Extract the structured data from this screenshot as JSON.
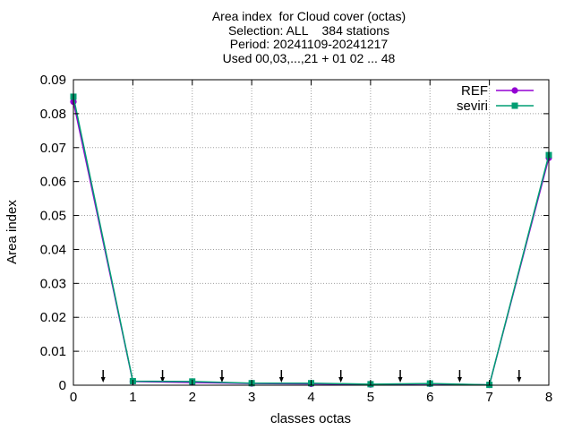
{
  "chart_data": {
    "type": "line",
    "title_lines": [
      "Area index  for Cloud cover (octas)",
      "Selection: ALL    384 stations",
      "Period: 20241109-20241217",
      "Used 00,03,...,21 + 01 02 ... 48"
    ],
    "xlabel": "classes octas",
    "ylabel": "Area index",
    "xlim": [
      0,
      8
    ],
    "ylim": [
      0,
      0.09
    ],
    "x_ticks": [
      "0",
      "1",
      "2",
      "3",
      "4",
      "5",
      "6",
      "7",
      "8"
    ],
    "y_ticks": [
      "0",
      "0.01",
      "0.02",
      "0.03",
      "0.04",
      "0.05",
      "0.06",
      "0.07",
      "0.08",
      "0.09"
    ],
    "grid": true,
    "legend_position": "top-right",
    "x": [
      0,
      1,
      2,
      3,
      4,
      5,
      6,
      7,
      8
    ],
    "series": [
      {
        "name": "REF",
        "color": "#9400d3",
        "marker": "circle",
        "values": [
          0.0835,
          0.0011,
          0.0008,
          0.0005,
          0.0004,
          0.0002,
          0.0004,
          0.0001,
          0.067
        ]
      },
      {
        "name": "seviri",
        "color": "#009e73",
        "marker": "square",
        "values": [
          0.085,
          0.0012,
          0.0011,
          0.0006,
          0.0006,
          0.0003,
          0.0005,
          0.0001,
          0.0678
        ]
      }
    ],
    "arrow_markers_x": [
      0.5,
      1.5,
      2.5,
      3.5,
      4.5,
      5.5,
      6.5,
      7.5
    ]
  }
}
